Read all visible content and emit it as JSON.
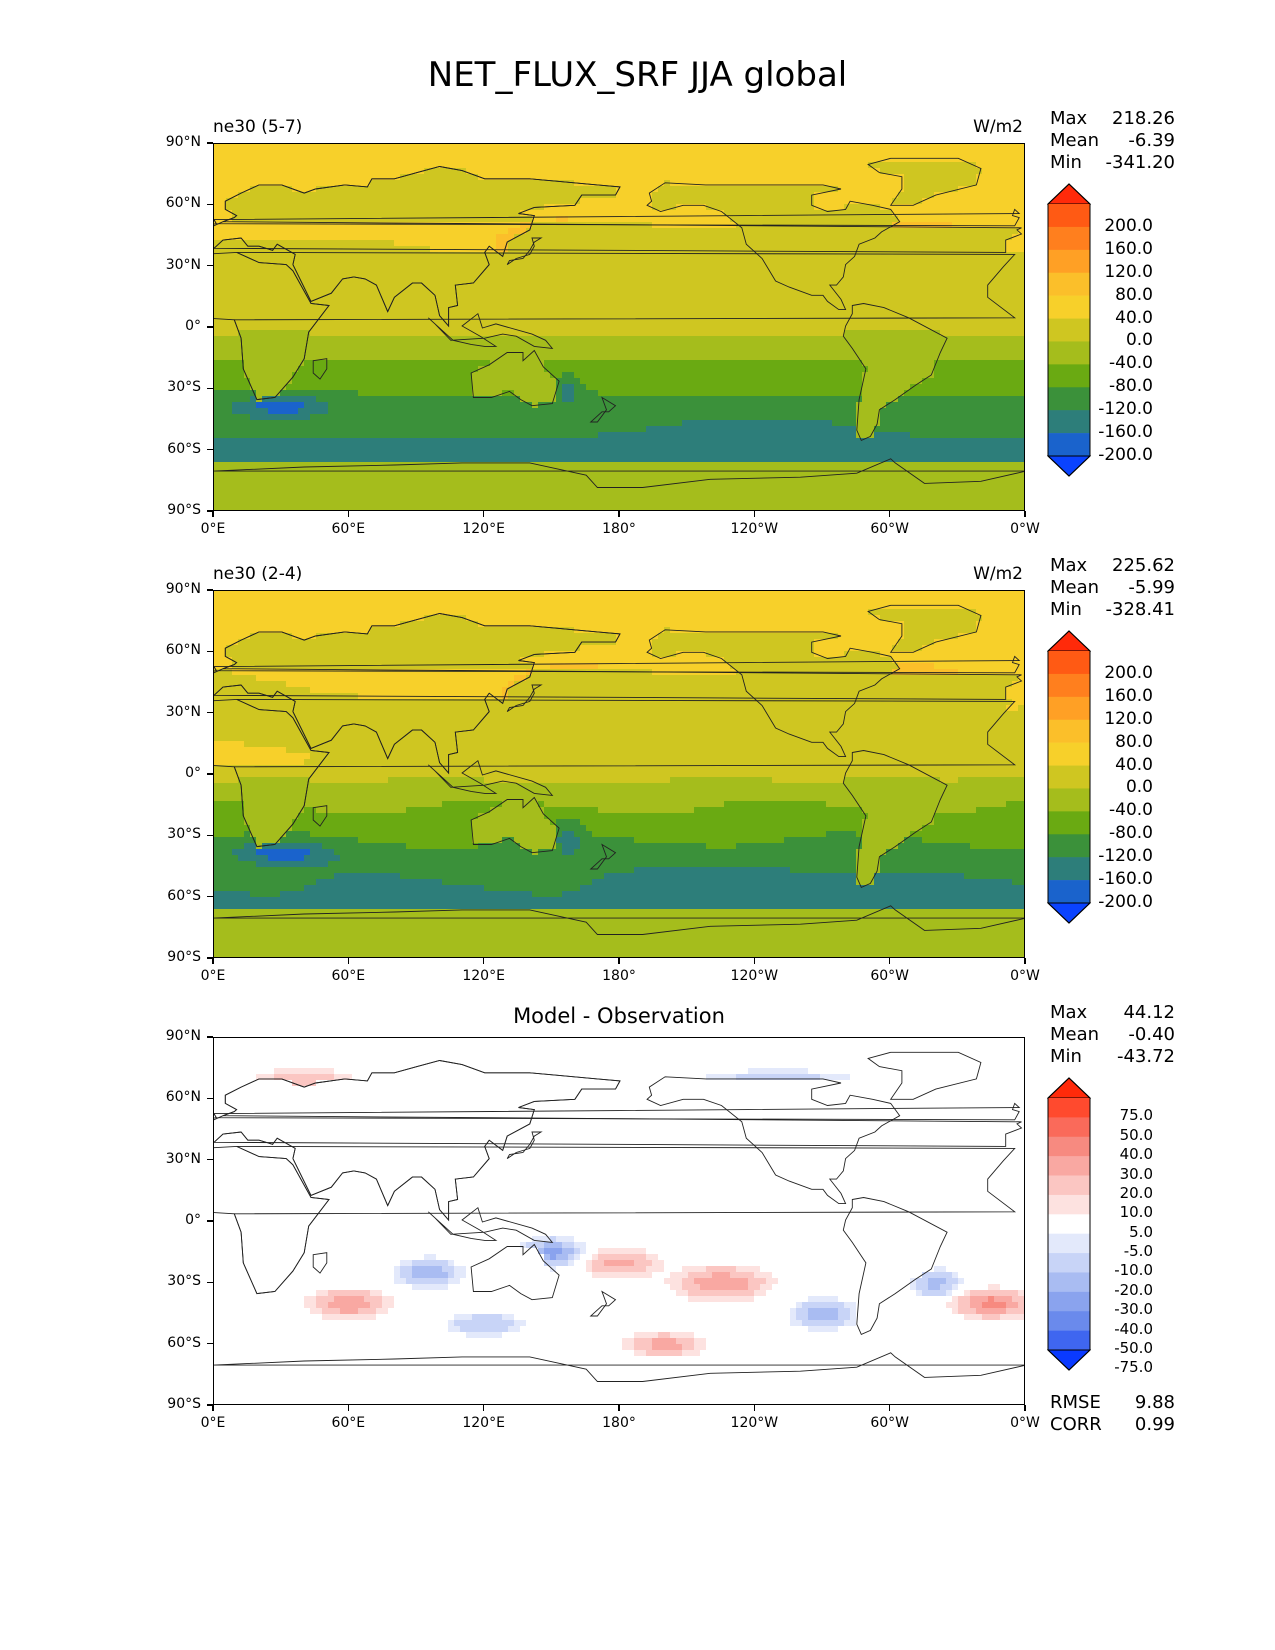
{
  "title": "NET_FLUX_SRF JJA global",
  "y_ticks": [
    "90°N",
    "60°N",
    "30°N",
    "0°",
    "30°S",
    "60°S",
    "90°S"
  ],
  "x_ticks": [
    "0°E",
    "60°E",
    "120°E",
    "180°",
    "120°W",
    "60°W",
    "0°W"
  ],
  "panels": [
    {
      "left_title": "ne30 (5-7)",
      "right_title": "W/m2",
      "center_title": "",
      "stats": [
        [
          "Max",
          "218.26"
        ],
        [
          "Mean",
          "-6.39"
        ],
        [
          "Min",
          "-341.20"
        ]
      ],
      "colorbar": {
        "labels": [
          "200.0",
          "160.0",
          "120.0",
          "80.0",
          "40.0",
          "0.0",
          "-40.0",
          "-80.0",
          "-120.0",
          "-160.0",
          "-200.0"
        ],
        "colors": [
          "#ff2a0a",
          "#ff5a14",
          "#ff7f1e",
          "#ffa025",
          "#fbbf2a",
          "#f7d02a",
          "#cfc621",
          "#a5bd1c",
          "#6aaa12",
          "#3b913a",
          "#2d7e7a",
          "#1a63cc",
          "#0a43ff"
        ]
      }
    },
    {
      "left_title": "ne30 (2-4)",
      "right_title": "W/m2",
      "center_title": "",
      "stats": [
        [
          "Max",
          "225.62"
        ],
        [
          "Mean",
          "-5.99"
        ],
        [
          "Min",
          "-328.41"
        ]
      ],
      "colorbar": {
        "labels": [
          "200.0",
          "160.0",
          "120.0",
          "80.0",
          "40.0",
          "0.0",
          "-40.0",
          "-80.0",
          "-120.0",
          "-160.0",
          "-200.0"
        ],
        "colors": [
          "#ff2a0a",
          "#ff5a14",
          "#ff7f1e",
          "#ffa025",
          "#fbbf2a",
          "#f7d02a",
          "#cfc621",
          "#a5bd1c",
          "#6aaa12",
          "#3b913a",
          "#2d7e7a",
          "#1a63cc",
          "#0a43ff"
        ]
      }
    },
    {
      "left_title": "",
      "right_title": "",
      "center_title": "Model - Observation",
      "stats": [
        [
          "Max",
          "44.12"
        ],
        [
          "Mean",
          "-0.40"
        ],
        [
          "Min",
          "-43.72"
        ]
      ],
      "extra_stats": [
        [
          "RMSE",
          "9.88"
        ],
        [
          "CORR",
          "0.99"
        ]
      ],
      "colorbar": {
        "labels": [
          "75.0",
          "50.0",
          "40.0",
          "30.0",
          "20.0",
          "10.0",
          "5.0",
          "-5.0",
          "-10.0",
          "-20.0",
          "-30.0",
          "-40.0",
          "-50.0",
          "-75.0"
        ],
        "colors": [
          "#ff2a0a",
          "#ff4a2e",
          "#fa6a5a",
          "#f78a80",
          "#f9a8a2",
          "#fbc6c2",
          "#fde2e0",
          "#ffffff",
          "#e3e9fb",
          "#c8d4f7",
          "#a9bcf2",
          "#8aa3ee",
          "#6a8aec",
          "#3f66f0",
          "#0a3aff"
        ]
      }
    }
  ],
  "chart_data": [
    {
      "type": "heatmap",
      "title": "ne30 (5-7)",
      "units": "W/m2",
      "x": [
        "0°E",
        "60°E",
        "120°E",
        "180°",
        "120°W",
        "60°W",
        "0°W"
      ],
      "y": [
        "90°N",
        "60°N",
        "30°N",
        "0°",
        "30°S",
        "60°S",
        "90°S"
      ],
      "levels": [
        -200,
        -160,
        -120,
        -80,
        -40,
        0,
        40,
        80,
        120,
        160,
        200
      ],
      "stats": {
        "max": 218.26,
        "mean": -6.39,
        "min": -341.2
      }
    },
    {
      "type": "heatmap",
      "title": "ne30 (2-4)",
      "units": "W/m2",
      "x": [
        "0°E",
        "60°E",
        "120°E",
        "180°",
        "120°W",
        "60°W",
        "0°W"
      ],
      "y": [
        "90°N",
        "60°N",
        "30°N",
        "0°",
        "30°S",
        "60°S",
        "90°S"
      ],
      "levels": [
        -200,
        -160,
        -120,
        -80,
        -40,
        0,
        40,
        80,
        120,
        160,
        200
      ],
      "stats": {
        "max": 225.62,
        "mean": -5.99,
        "min": -328.41
      }
    },
    {
      "type": "heatmap",
      "title": "Model - Observation",
      "x": [
        "0°E",
        "60°E",
        "120°E",
        "180°",
        "120°W",
        "60°W",
        "0°W"
      ],
      "y": [
        "90°N",
        "60°N",
        "30°N",
        "0°",
        "30°S",
        "60°S",
        "90°S"
      ],
      "levels": [
        -75,
        -50,
        -40,
        -30,
        -20,
        -10,
        -5,
        5,
        10,
        20,
        30,
        40,
        50,
        75
      ],
      "stats": {
        "max": 44.12,
        "mean": -0.4,
        "min": -43.72,
        "rmse": 9.88,
        "corr": 0.99
      }
    }
  ]
}
